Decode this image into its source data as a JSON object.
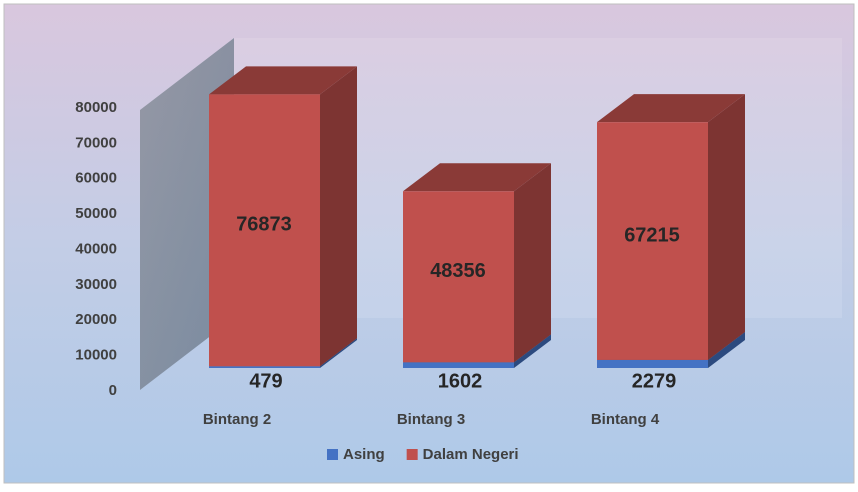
{
  "chart_data": {
    "type": "bar3d_stacked",
    "categories": [
      "Bintang 2",
      "Bintang 3",
      "Bintang 4"
    ],
    "series": [
      {
        "name": "Asing",
        "color": "#4472c4",
        "values": [
          479,
          1602,
          2279
        ]
      },
      {
        "name": "Dalam Negeri",
        "color": "#c0504d",
        "values": [
          76873,
          48356,
          67215
        ]
      }
    ],
    "ylim": [
      0,
      80000
    ],
    "yticks": [
      0,
      10000,
      20000,
      30000,
      40000,
      50000,
      60000,
      70000,
      80000
    ]
  }
}
